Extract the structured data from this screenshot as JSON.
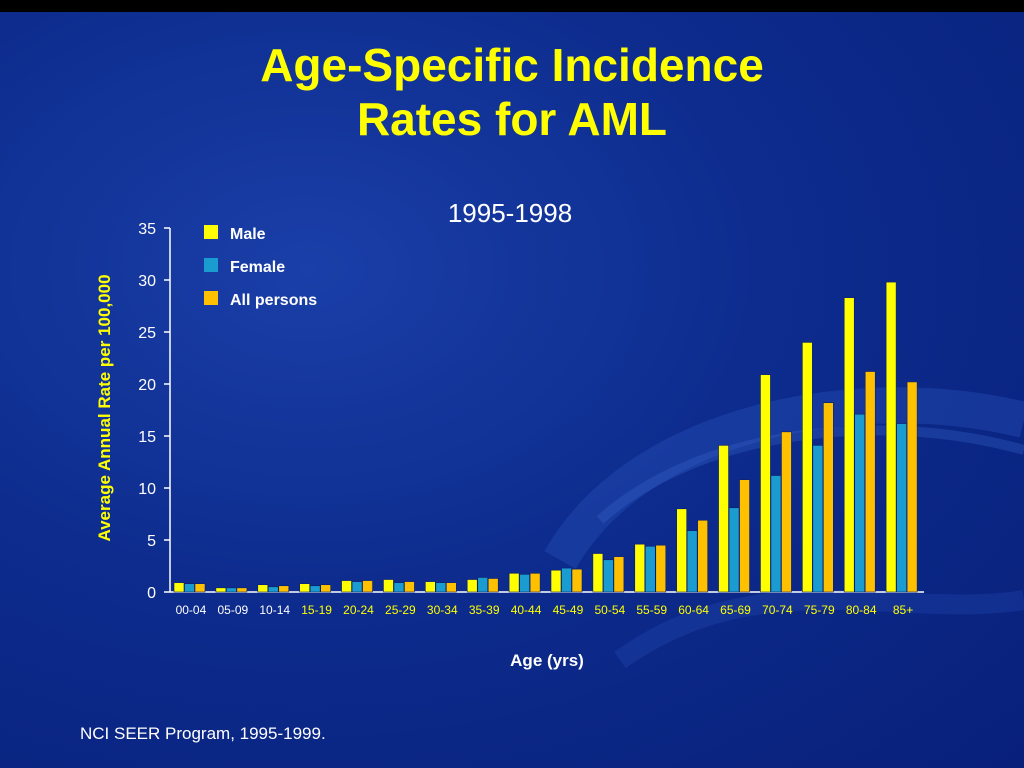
{
  "slide": {
    "title_line1": "Age-Specific Incidence",
    "title_line2": "Rates for AML",
    "source": "NCI SEER Program, 1995-1999."
  },
  "colors": {
    "background": "#0b2a8c",
    "title": "#ffff00",
    "male": "#ffff00",
    "female": "#1a9cd0",
    "all": "#ffc000",
    "axis": "#ffffff",
    "tick_label_yellow": "#ffff00"
  },
  "chart_data": {
    "type": "bar",
    "title": "1995-1998",
    "xlabel": "Age (yrs)",
    "ylabel": "Average Annual Rate per 100,000",
    "ylim": [
      0,
      35
    ],
    "yticks": [
      0,
      5,
      10,
      15,
      20,
      25,
      30,
      35
    ],
    "grid": false,
    "legend_position": "top-left",
    "categories": [
      "00-04",
      "05-09",
      "10-14",
      "15-19",
      "20-24",
      "25-29",
      "30-34",
      "35-39",
      "40-44",
      "45-49",
      "50-54",
      "55-59",
      "60-64",
      "65-69",
      "70-74",
      "75-79",
      "80-84",
      "85+"
    ],
    "category_label_colors": [
      "white",
      "white",
      "white",
      "yellow",
      "yellow",
      "yellow",
      "yellow",
      "yellow",
      "yellow",
      "yellow",
      "yellow",
      "yellow",
      "yellow",
      "yellow",
      "yellow",
      "yellow",
      "yellow",
      "yellow"
    ],
    "series": [
      {
        "name": "Male",
        "color": "#ffff00",
        "values": [
          0.9,
          0.4,
          0.7,
          0.8,
          1.1,
          1.2,
          1.0,
          1.2,
          1.8,
          2.1,
          3.7,
          4.6,
          8.0,
          14.1,
          20.9,
          24.0,
          28.3,
          29.8
        ]
      },
      {
        "name": "Female",
        "color": "#1a9cd0",
        "values": [
          0.8,
          0.4,
          0.5,
          0.6,
          1.0,
          0.9,
          0.9,
          1.4,
          1.7,
          2.3,
          3.1,
          4.4,
          5.9,
          8.1,
          11.2,
          14.1,
          17.1,
          16.2
        ]
      },
      {
        "name": "All persons",
        "color": "#ffc000",
        "values": [
          0.8,
          0.4,
          0.6,
          0.7,
          1.1,
          1.0,
          0.9,
          1.3,
          1.8,
          2.2,
          3.4,
          4.5,
          6.9,
          10.8,
          15.4,
          18.2,
          21.2,
          20.2
        ]
      }
    ]
  }
}
